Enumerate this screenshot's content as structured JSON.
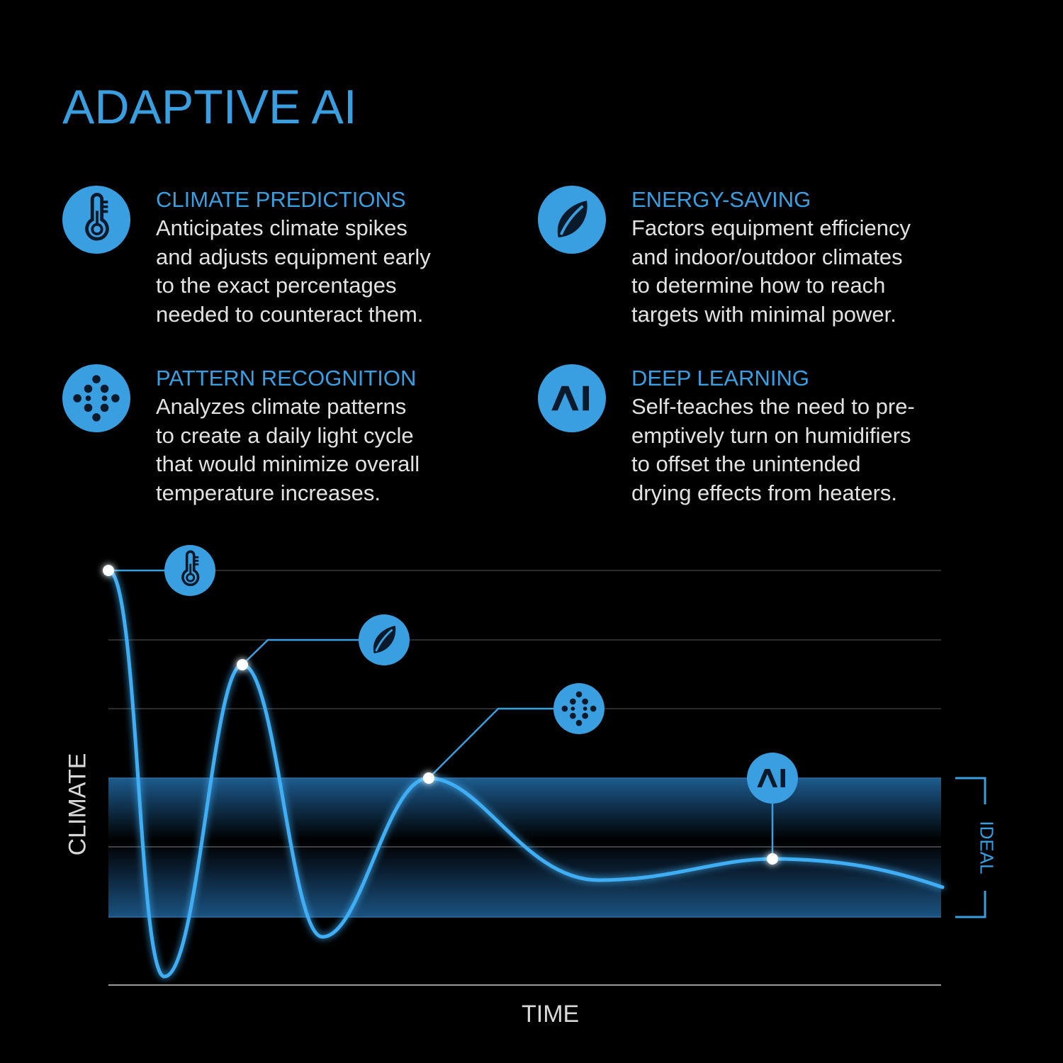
{
  "title": "ADAPTIVE AI",
  "accent_color": "#3a9fe0",
  "features": [
    {
      "icon": "thermometer-icon",
      "heading": "CLIMATE PREDICTIONS",
      "lines": [
        "Anticipates climate spikes",
        "and adjusts equipment early",
        "to the exact percentages",
        "needed to counteract them."
      ]
    },
    {
      "icon": "leaf-icon",
      "heading": "ENERGY-SAVING",
      "lines": [
        "Factors equipment efficiency",
        "and indoor/outdoor climates",
        "to determine how to reach",
        "targets with minimal power."
      ]
    },
    {
      "icon": "pattern-dots-icon",
      "heading": "PATTERN RECOGNITION",
      "lines": [
        "Analyzes climate patterns",
        "to create a daily light cycle",
        "that would minimize overall",
        "temperature increases."
      ]
    },
    {
      "icon": "ai-icon",
      "heading": "DEEP LEARNING",
      "lines": [
        "Self-teaches the need to pre-",
        "emptively turn on humidifiers",
        "to offset the unintended",
        "drying effects from heaters."
      ]
    }
  ],
  "chart": {
    "ylabel": "CLIMATE",
    "xlabel": "TIME",
    "band_label": "IDEAL",
    "markers": [
      "thermometer-icon",
      "leaf-icon",
      "pattern-dots-icon",
      "ai-icon"
    ]
  }
}
